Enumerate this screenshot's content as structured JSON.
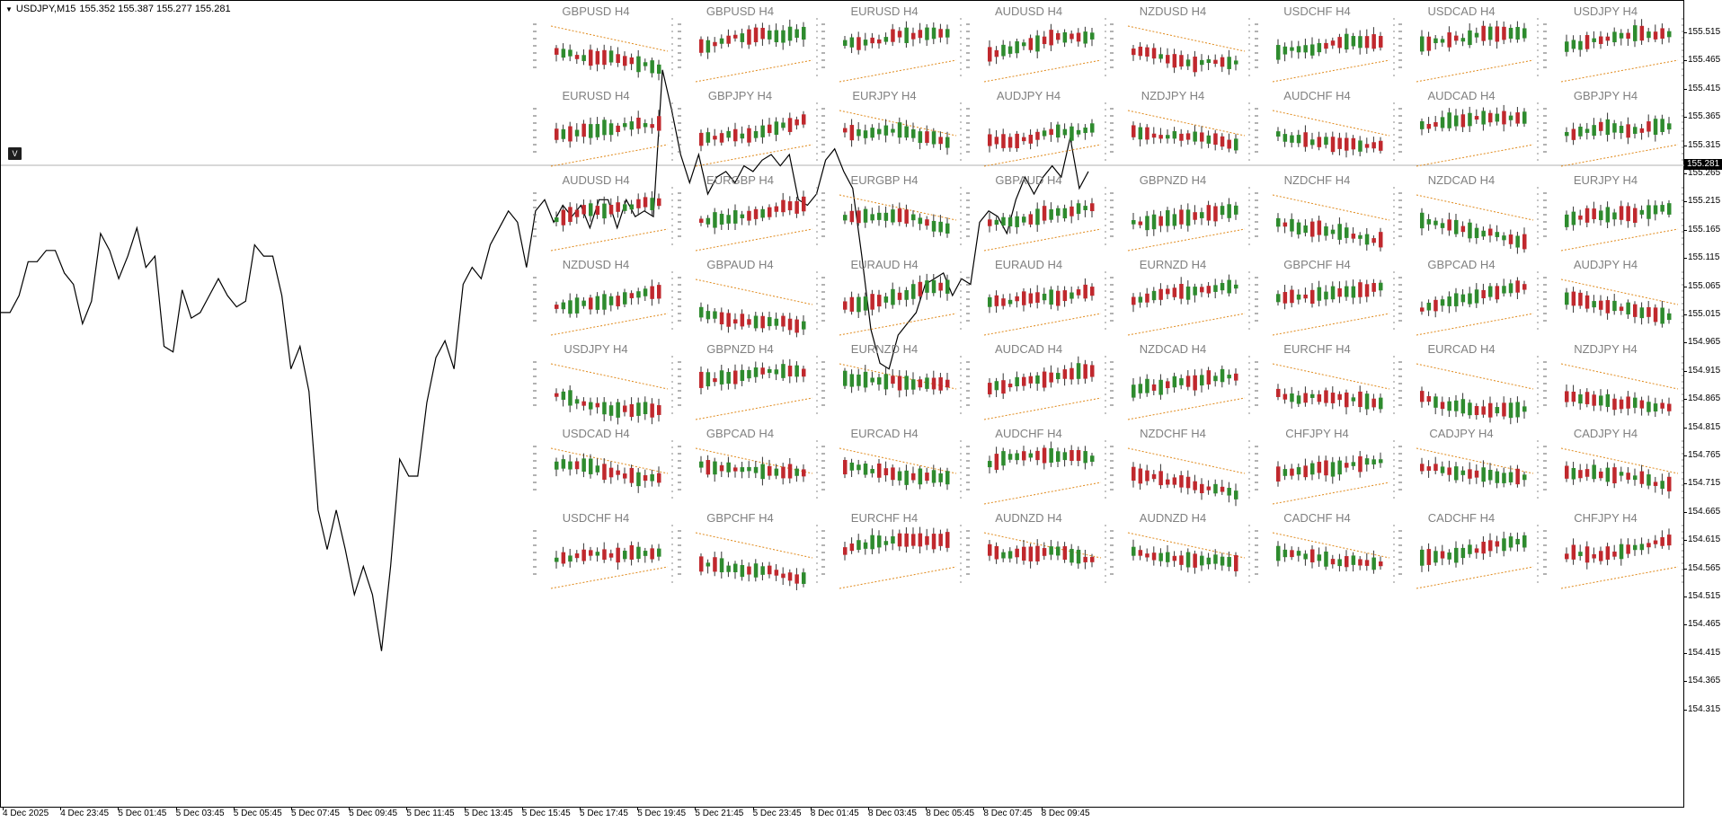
{
  "window": {
    "symbol": "USDJPY,M15",
    "ohlc": "155.352 155.387 155.277 155.281",
    "v_button": "V"
  },
  "price_scale": {
    "labels": [
      "155.515",
      "155.465",
      "155.415",
      "155.365",
      "155.315",
      "155.265",
      "155.215",
      "155.165",
      "155.115",
      "155.065",
      "155.015",
      "154.965",
      "154.915",
      "154.865",
      "154.815",
      "154.765",
      "154.715",
      "154.665",
      "154.615",
      "154.565",
      "154.515",
      "154.465",
      "154.415",
      "154.365",
      "154.315"
    ],
    "current_price": "155.281"
  },
  "time_scale": {
    "labels": [
      "4 Dec 2025",
      "4 Dec 23:45",
      "5 Dec 01:45",
      "5 Dec 03:45",
      "5 Dec 05:45",
      "5 Dec 07:45",
      "5 Dec 09:45",
      "5 Dec 11:45",
      "5 Dec 13:45",
      "5 Dec 15:45",
      "5 Dec 17:45",
      "5 Dec 19:45",
      "5 Dec 21:45",
      "5 Dec 23:45",
      "8 Dec 01:45",
      "8 Dec 03:45",
      "8 Dec 05:45",
      "8 Dec 07:45",
      "8 Dec 09:45"
    ]
  },
  "colors": {
    "bull": "#2e8b2e",
    "bear": "#c0282d",
    "trend": "#e08a1c",
    "line": "#000000"
  },
  "mini_charts": [
    "GBPUSD H4",
    "GBPUSD H4",
    "EURUSD H4",
    "AUDUSD H4",
    "NZDUSD H4",
    "USDCHF H4",
    "USDCAD H4",
    "USDJPY H4",
    "EURUSD H4",
    "GBPJPY H4",
    "EURJPY H4",
    "AUDJPY H4",
    "NZDJPY H4",
    "AUDCHF H4",
    "AUDCAD H4",
    "GBPJPY H4",
    "AUDUSD H4",
    "EURGBP H4",
    "EURGBP H4",
    "GBPAUD H4",
    "GBPNZD H4",
    "NZDCHF H4",
    "NZDCAD H4",
    "EURJPY H4",
    "NZDUSD H4",
    "GBPAUD H4",
    "EURAUD H4",
    "EURAUD H4",
    "EURNZD H4",
    "GBPCHF H4",
    "GBPCAD H4",
    "AUDJPY H4",
    "USDJPY H4",
    "GBPNZD H4",
    "EURNZD H4",
    "AUDCAD H4",
    "NZDCAD H4",
    "EURCHF H4",
    "EURCAD H4",
    "NZDJPY H4",
    "USDCAD H4",
    "GBPCAD H4",
    "EURCAD H4",
    "AUDCHF H4",
    "NZDCHF H4",
    "CHFJPY H4",
    "CADJPY H4",
    "CADJPY H4",
    "USDCHF H4",
    "GBPCHF H4",
    "EURCHF H4",
    "AUDNZD H4",
    "AUDNZD H4",
    "CADCHF H4",
    "CADCHF H4",
    "CHFJPY H4"
  ],
  "chart_data": {
    "type": "line",
    "title": "USDJPY,M15",
    "ylim": [
      154.29,
      155.56
    ],
    "y": [
      155.02,
      155.02,
      155.05,
      155.11,
      155.11,
      155.13,
      155.13,
      155.09,
      155.07,
      155.0,
      155.04,
      155.16,
      155.13,
      155.08,
      155.12,
      155.17,
      155.1,
      155.12,
      154.96,
      154.95,
      155.06,
      155.01,
      155.02,
      155.05,
      155.08,
      155.05,
      155.03,
      155.04,
      155.14,
      155.12,
      155.12,
      155.05,
      154.92,
      154.96,
      154.88,
      154.67,
      154.6,
      154.67,
      154.6,
      154.52,
      154.57,
      154.52,
      154.42,
      154.57,
      154.76,
      154.73,
      154.73,
      154.86,
      154.94,
      154.97,
      154.92,
      155.07,
      155.1,
      155.08,
      155.14,
      155.17,
      155.2,
      155.18,
      155.1,
      155.2,
      155.22,
      155.18,
      155.21,
      155.19,
      155.21,
      155.17,
      155.22,
      155.22,
      155.17,
      155.22,
      155.19,
      155.2,
      155.19,
      155.45,
      155.38,
      155.3,
      155.25,
      155.3,
      155.23,
      155.26,
      155.27,
      155.25,
      155.28,
      155.27,
      155.29,
      155.3,
      155.28,
      155.3,
      155.22,
      155.21,
      155.23,
      155.29,
      155.31,
      155.27,
      155.24,
      155.12,
      154.99,
      154.93,
      154.92,
      154.98,
      155.0,
      155.02,
      155.07,
      155.08,
      155.09,
      155.05,
      155.08,
      155.07,
      155.18,
      155.2,
      155.19,
      155.16,
      155.22,
      155.26,
      155.23,
      155.26,
      155.28,
      155.26,
      155.33,
      155.24,
      155.27
    ]
  }
}
